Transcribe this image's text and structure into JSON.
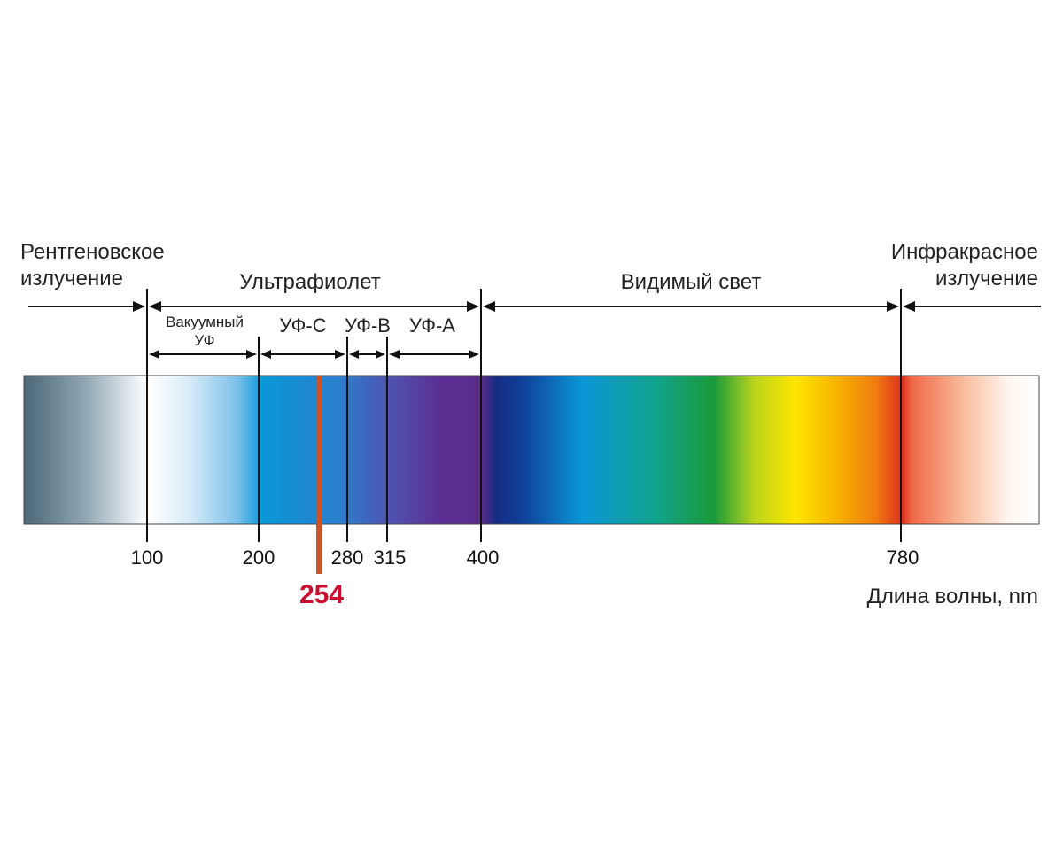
{
  "regions": {
    "xray": {
      "line1": "Рентгеновское",
      "line2": "излучение"
    },
    "uv": "Ультрафиолет",
    "visible": "Видимый свет",
    "infrared": {
      "line1": "Инфракрасное",
      "line2": "излучение"
    }
  },
  "uv_bands": {
    "vacuum": {
      "line1": "Вакуумный",
      "line2": "УФ"
    },
    "uvc": "УФ-С",
    "uvb": "УФ-В",
    "uva": "УФ-А"
  },
  "ticks": [
    "100",
    "200",
    "280",
    "315",
    "400",
    "780"
  ],
  "highlight": {
    "value": "254",
    "color": "#c8102e",
    "bar_color": "#c8552a"
  },
  "axis_label": "Длина волны, nm"
}
